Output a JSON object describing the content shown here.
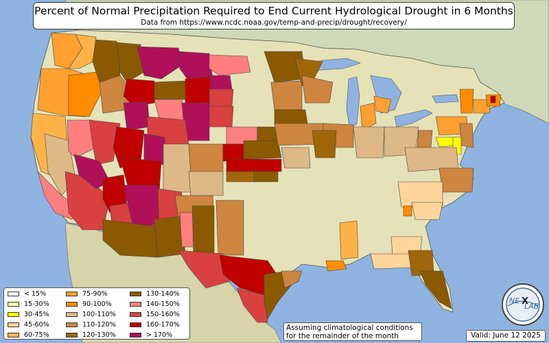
{
  "title": "Percent of Normal Precipitation Required to End Current Hydrological Drought in 6 Months",
  "subtitle": "Data from https://www.ncdc.noaa.gov/temp-and-precip/drought/recovery/",
  "note_line1": "Assuming climatological conditions",
  "note_line2": "for the remainder of the month",
  "valid": "Valid: June 12 2025",
  "logo_text_1": "NE",
  "logo_text_2": "LAB",
  "colors": {
    "water": "#8fb3e0",
    "land_us": "#e6e2b8",
    "land_neighbor": "#cfd9b8",
    "border": "#555555"
  },
  "legend": [
    {
      "label": "< 15%",
      "color": "#ffffff"
    },
    {
      "label": "15-30%",
      "color": "#ffffb0"
    },
    {
      "label": "30-45%",
      "color": "#ffff00"
    },
    {
      "label": "45-60%",
      "color": "#ffd59a"
    },
    {
      "label": "60-75%",
      "color": "#ffb347"
    },
    {
      "label": "75-90%",
      "color": "#ffa030"
    },
    {
      "label": "90-100%",
      "color": "#ff8c00"
    },
    {
      "label": "100-110%",
      "color": "#deb887"
    },
    {
      "label": "110-120%",
      "color": "#cd853f"
    },
    {
      "label": "120-130%",
      "color": "#a0660a"
    },
    {
      "label": "130-140%",
      "color": "#8b5a00"
    },
    {
      "label": "140-150%",
      "color": "#ff7f7f"
    },
    {
      "label": "150-160%",
      "color": "#d94040"
    },
    {
      "label": "160-170%",
      "color": "#c00000"
    },
    {
      "label": "> 170%",
      "color": "#b0105a"
    }
  ]
}
